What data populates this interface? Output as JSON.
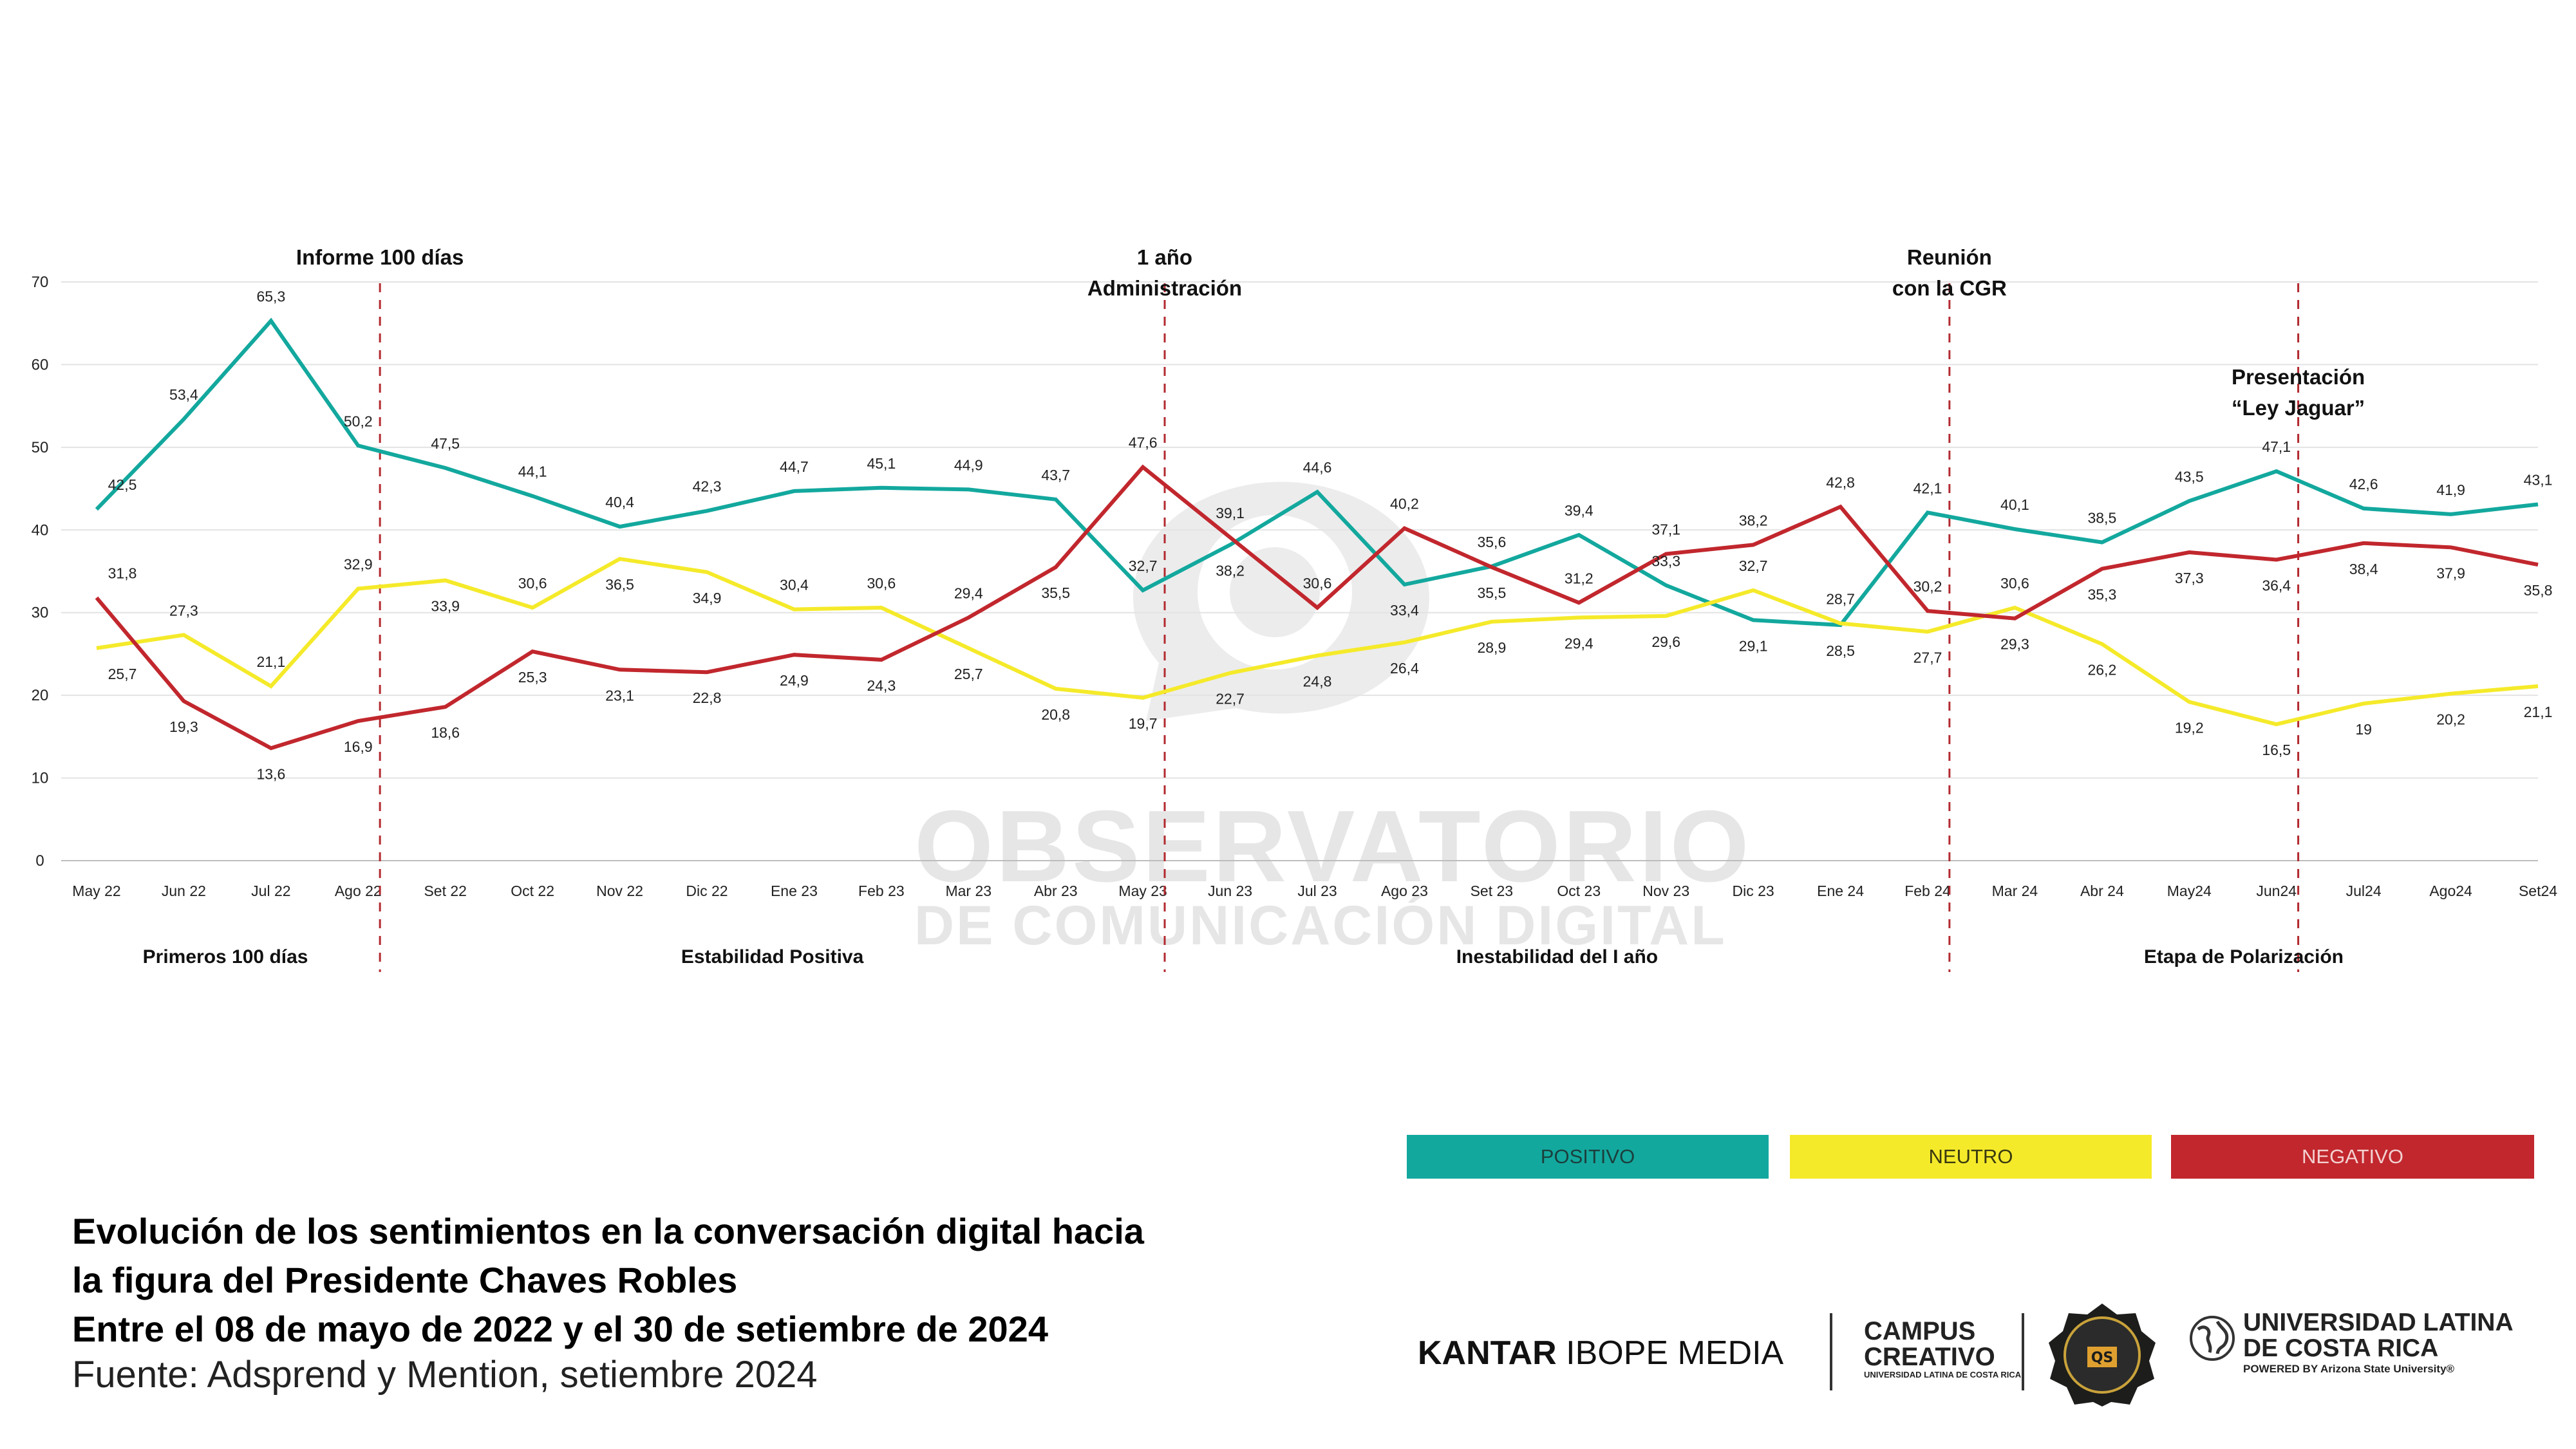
{
  "chart_data": {
    "type": "line",
    "categories": [
      "May 22",
      "Jun 22",
      "Jul 22",
      "Ago 22",
      "Set 22",
      "Oct 22",
      "Nov 22",
      "Dic 22",
      "Ene 23",
      "Feb 23",
      "Mar 23",
      "Abr 23",
      "May 23",
      "Jun 23",
      "Jul 23",
      "Ago 23",
      "Set 23",
      "Oct 23",
      "Nov 23",
      "Dic 23",
      "Ene 24",
      "Feb 24",
      "Mar 24",
      "Abr 24",
      "May24",
      "Jun24",
      "Jul24",
      "Ago24",
      "Set24"
    ],
    "series": [
      {
        "name": "POSITIVO",
        "color": "#13a89e",
        "values": [
          42.5,
          53.4,
          65.3,
          50.2,
          47.5,
          44.1,
          40.4,
          42.3,
          44.7,
          45.1,
          44.9,
          43.7,
          32.7,
          38.2,
          44.6,
          33.4,
          35.6,
          39.4,
          33.3,
          29.1,
          28.5,
          42.1,
          40.1,
          38.5,
          43.5,
          47.1,
          42.6,
          41.9,
          43.1
        ],
        "labels": [
          "42,5",
          "53,4",
          "65,3",
          "50,2",
          "47,5",
          "44,1",
          "40,4",
          "42,3",
          "44,7",
          "45,1",
          "44,9",
          "43,7",
          "32,7",
          "38,2",
          "44,6",
          "33,4",
          "35,6",
          "39,4",
          "33,3",
          "29,1",
          "28,5",
          "42,1",
          "40,1",
          "38,5",
          "43,5",
          "47,1",
          "42,6",
          "41,9",
          "43,1"
        ]
      },
      {
        "name": "NEUTRO",
        "color": "#f5ea2a",
        "values": [
          25.7,
          27.3,
          21.1,
          32.9,
          33.9,
          30.6,
          36.5,
          34.9,
          30.4,
          30.6,
          25.7,
          20.8,
          19.7,
          22.7,
          24.8,
          26.4,
          28.9,
          29.4,
          29.6,
          32.7,
          28.7,
          27.7,
          30.6,
          26.2,
          19.2,
          16.5,
          19,
          20.2,
          21.1
        ],
        "labels": [
          "25,7",
          "27,3",
          "21,1",
          "32,9",
          "33,9",
          "30,6",
          "36,5",
          "34,9",
          "30,4",
          "30,6",
          "25,7",
          "20,8",
          "19,7",
          "22,7",
          "24,8",
          "26,4",
          "28,9",
          "29,4",
          "29,6",
          "32,7",
          "28,7",
          "27,7",
          "30,6",
          "26,2",
          "19,2",
          "16,5",
          "19",
          "20,2",
          "21,1"
        ]
      },
      {
        "name": "NEGATIVO",
        "color": "#c1272d",
        "values": [
          31.8,
          19.3,
          13.6,
          16.9,
          18.6,
          25.3,
          23.1,
          22.8,
          24.9,
          24.3,
          29.4,
          35.5,
          47.6,
          39.1,
          30.6,
          40.2,
          35.5,
          31.2,
          37.1,
          38.2,
          42.8,
          30.2,
          29.3,
          35.3,
          37.3,
          36.4,
          38.4,
          37.9,
          35.8
        ],
        "labels": [
          "31,8",
          "19,3",
          "13,6",
          "16,9",
          "18,6",
          "25,3",
          "23,1",
          "22,8",
          "24,9",
          "24,3",
          "29,4",
          "35,5",
          "47,6",
          "39,1",
          "30,6",
          "40,2",
          "35,5",
          "31,2",
          "37,1",
          "38,2",
          "42,8",
          "30,2",
          "29,3",
          "35,3",
          "37,3",
          "36,4",
          "38,4",
          "37,9",
          "35,8"
        ]
      }
    ],
    "yticks": [
      "0",
      "10",
      "20",
      "30",
      "40",
      "50",
      "60",
      "70"
    ],
    "ylim": [
      0,
      70
    ],
    "grid": true,
    "events": [
      {
        "lines": [
          "Informe 100 días"
        ],
        "after_index": 3
      },
      {
        "lines": [
          "1 año",
          "Administración"
        ],
        "after_index": 12
      },
      {
        "lines": [
          "Reunión",
          "con la CGR"
        ],
        "after_index": 21
      },
      {
        "lines": [
          "Presentación",
          "“Ley Jaguar”"
        ],
        "after_index": 25
      }
    ],
    "phases": [
      "Primeros 100 días",
      "Estabilidad Positiva",
      "Inestabilidad del I año",
      "Etapa de Polarización"
    ],
    "legend": [
      {
        "label": "POSITIVO",
        "color": "#13a89e",
        "text_color": "#1b3f3c"
      },
      {
        "label": "NEUTRO",
        "color": "#f5ea2a",
        "text_color": "#3a3a10"
      },
      {
        "label": "NEGATIVO",
        "color": "#c1272d",
        "text_color": "#f3d0d0"
      }
    ]
  },
  "title_lines": [
    "Evolución de los sentimientos en la conversación digital hacia",
    "la figura del Presidente Chaves Robles",
    "Entre el 08 de mayo de 2022 y el 30 de setiembre de 2024"
  ],
  "source": "Fuente: Adsprend y Mention, setiembre 2024",
  "watermark": {
    "line1": "OBSERVATORIO",
    "line2": "DE COMUNICACIÓN DIGITAL"
  },
  "logos": {
    "kantar_bold": "KANTAR",
    "kantar_light": "IBOPE MEDIA",
    "campus_1": "CAMPUS",
    "campus_2": "CREATIVO",
    "campus_sub": "UNIVERSIDAD LATINA DE COSTA RICA",
    "badge": "QS",
    "ulatina_1": "UNIVERSIDAD LATINA",
    "ulatina_2": "DE COSTA RICA",
    "ulatina_3": "POWERED BY Arizona State University®"
  }
}
